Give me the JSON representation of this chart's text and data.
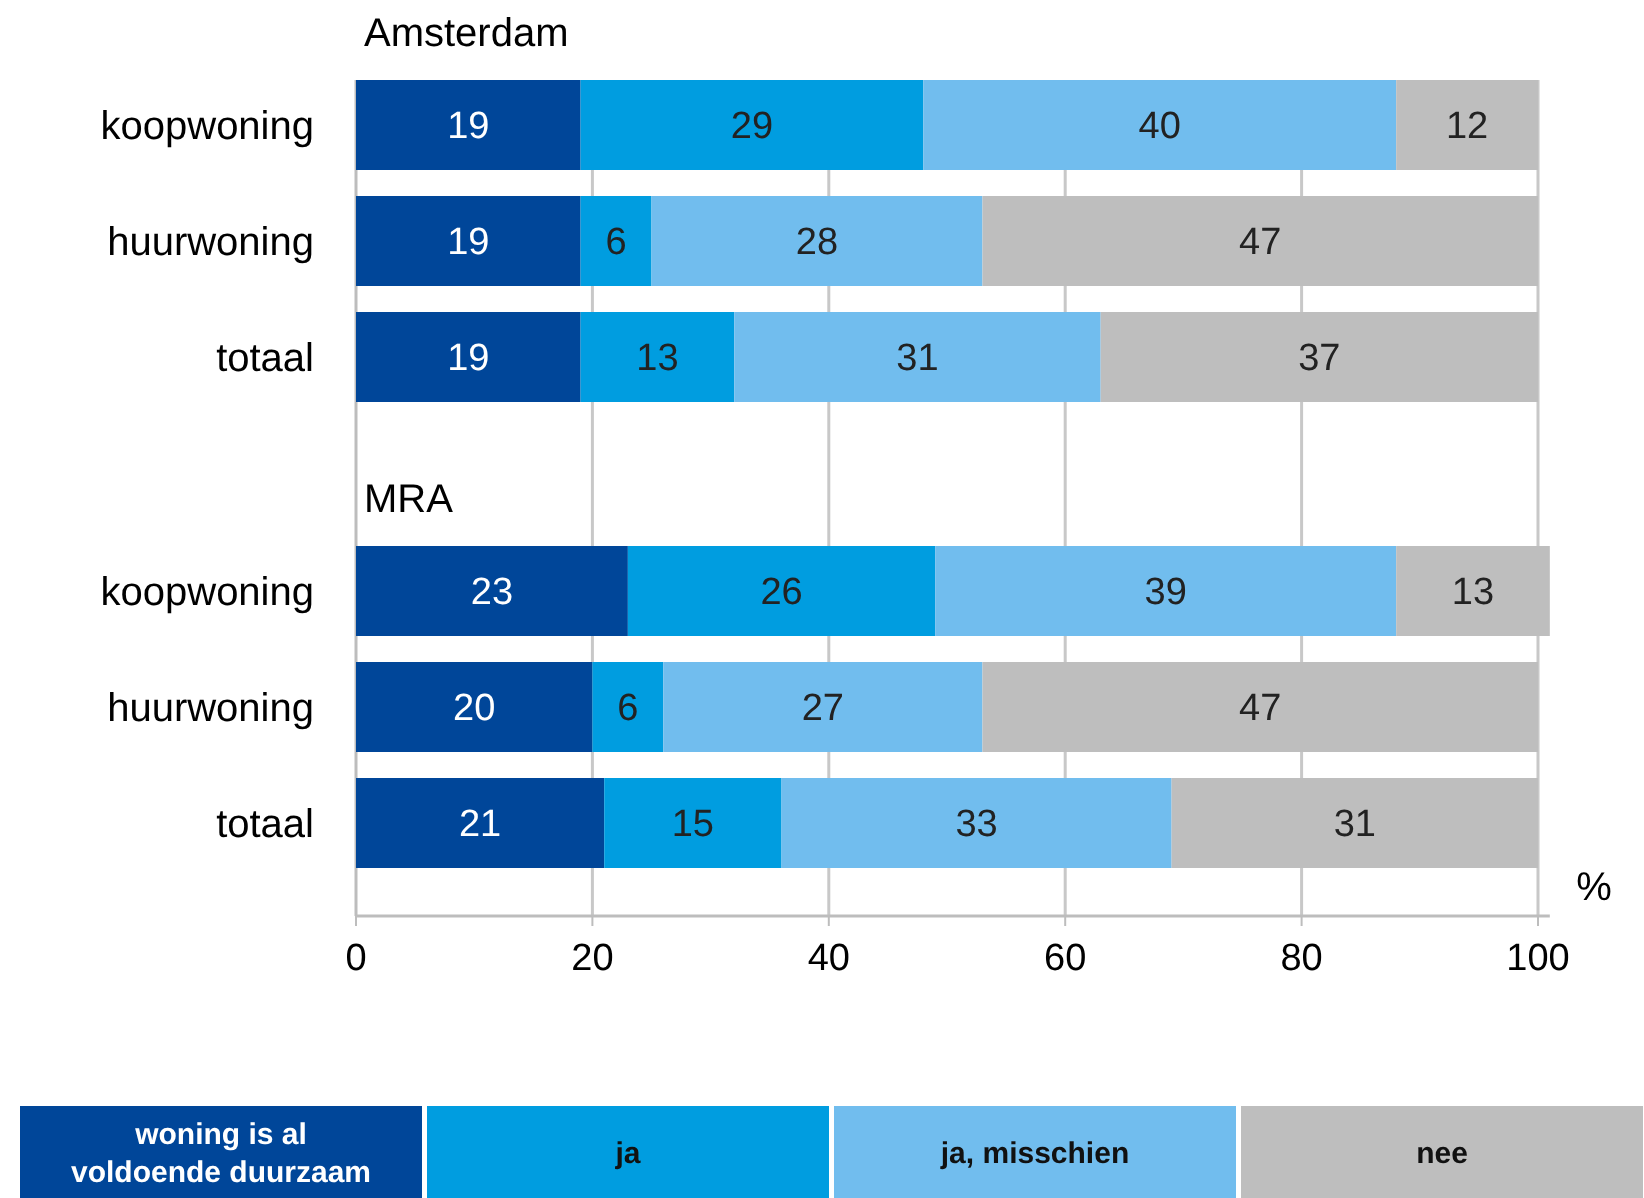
{
  "chart_data": [
    {
      "type": "bar",
      "title": "Amsterdam",
      "orientation": "horizontal",
      "stacked": true,
      "categories": [
        "koopwoning",
        "huurwoning",
        "totaal"
      ],
      "series": [
        {
          "color": "#004699",
          "values": [
            19,
            19,
            19
          ]
        },
        {
          "color": "#009de0",
          "values": [
            29,
            6,
            13
          ]
        },
        {
          "color": "#71bdee",
          "values": [
            40,
            28,
            31
          ]
        },
        {
          "color": "#bebebe",
          "values": [
            12,
            47,
            37
          ]
        }
      ],
      "xlim": [
        0,
        100
      ],
      "xticks": [
        0,
        20,
        40,
        60,
        80,
        100
      ],
      "grid": "x",
      "data_labels": true,
      "tick_labels": "y"
    },
    {
      "type": "bar",
      "title": "MRA",
      "orientation": "horizontal",
      "stacked": true,
      "categories": [
        "koopwoning",
        "huurwoning",
        "totaal"
      ],
      "xlabel": "%",
      "series": [
        {
          "name": "woning is al voldoende duurzaam",
          "color": "#004699",
          "values": [
            23,
            20,
            21
          ]
        },
        {
          "name": "ja",
          "color": "#009de0",
          "values": [
            26,
            6,
            15
          ]
        },
        {
          "name": "ja, misschien",
          "color": "#71bdee",
          "values": [
            39,
            27,
            33
          ]
        },
        {
          "name": "nee",
          "color": "#bebebe",
          "values": [
            13,
            47,
            31
          ]
        }
      ],
      "xlim": [
        0,
        101
      ],
      "xticks": [
        0,
        20,
        40,
        60,
        80,
        100
      ],
      "grid": "x",
      "data_labels": true,
      "legend": "bottom"
    }
  ]
}
